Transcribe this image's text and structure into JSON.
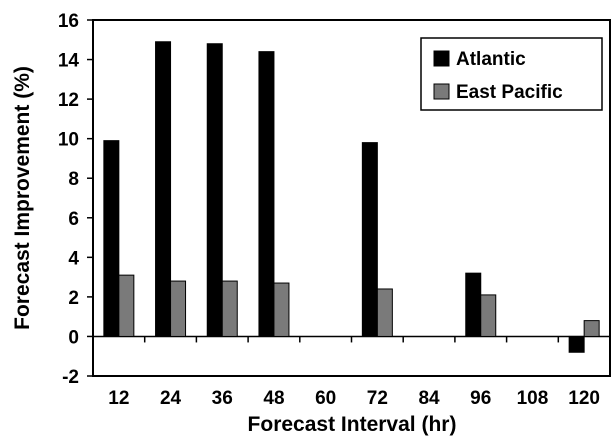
{
  "chart_data": {
    "type": "bar",
    "categories": [
      "12",
      "24",
      "36",
      "48",
      "60",
      "72",
      "84",
      "96",
      "108",
      "120"
    ],
    "series": [
      {
        "name": "Atlantic",
        "color": "#000000",
        "values": [
          9.9,
          14.9,
          14.8,
          14.4,
          null,
          9.8,
          null,
          3.2,
          null,
          -0.8
        ]
      },
      {
        "name": "East Pacific",
        "color": "#7a7a7a",
        "values": [
          3.1,
          2.8,
          2.8,
          2.7,
          null,
          2.4,
          null,
          2.1,
          null,
          0.8
        ]
      }
    ],
    "title": "",
    "xlabel": "Forecast Interval (hr)",
    "ylabel": "Forecast Improvement (%)",
    "ylim": [
      -2,
      16
    ],
    "yticks": [
      -2,
      0,
      2,
      4,
      6,
      8,
      10,
      12,
      14,
      16
    ],
    "grid": false,
    "legend_position": "top-right"
  }
}
